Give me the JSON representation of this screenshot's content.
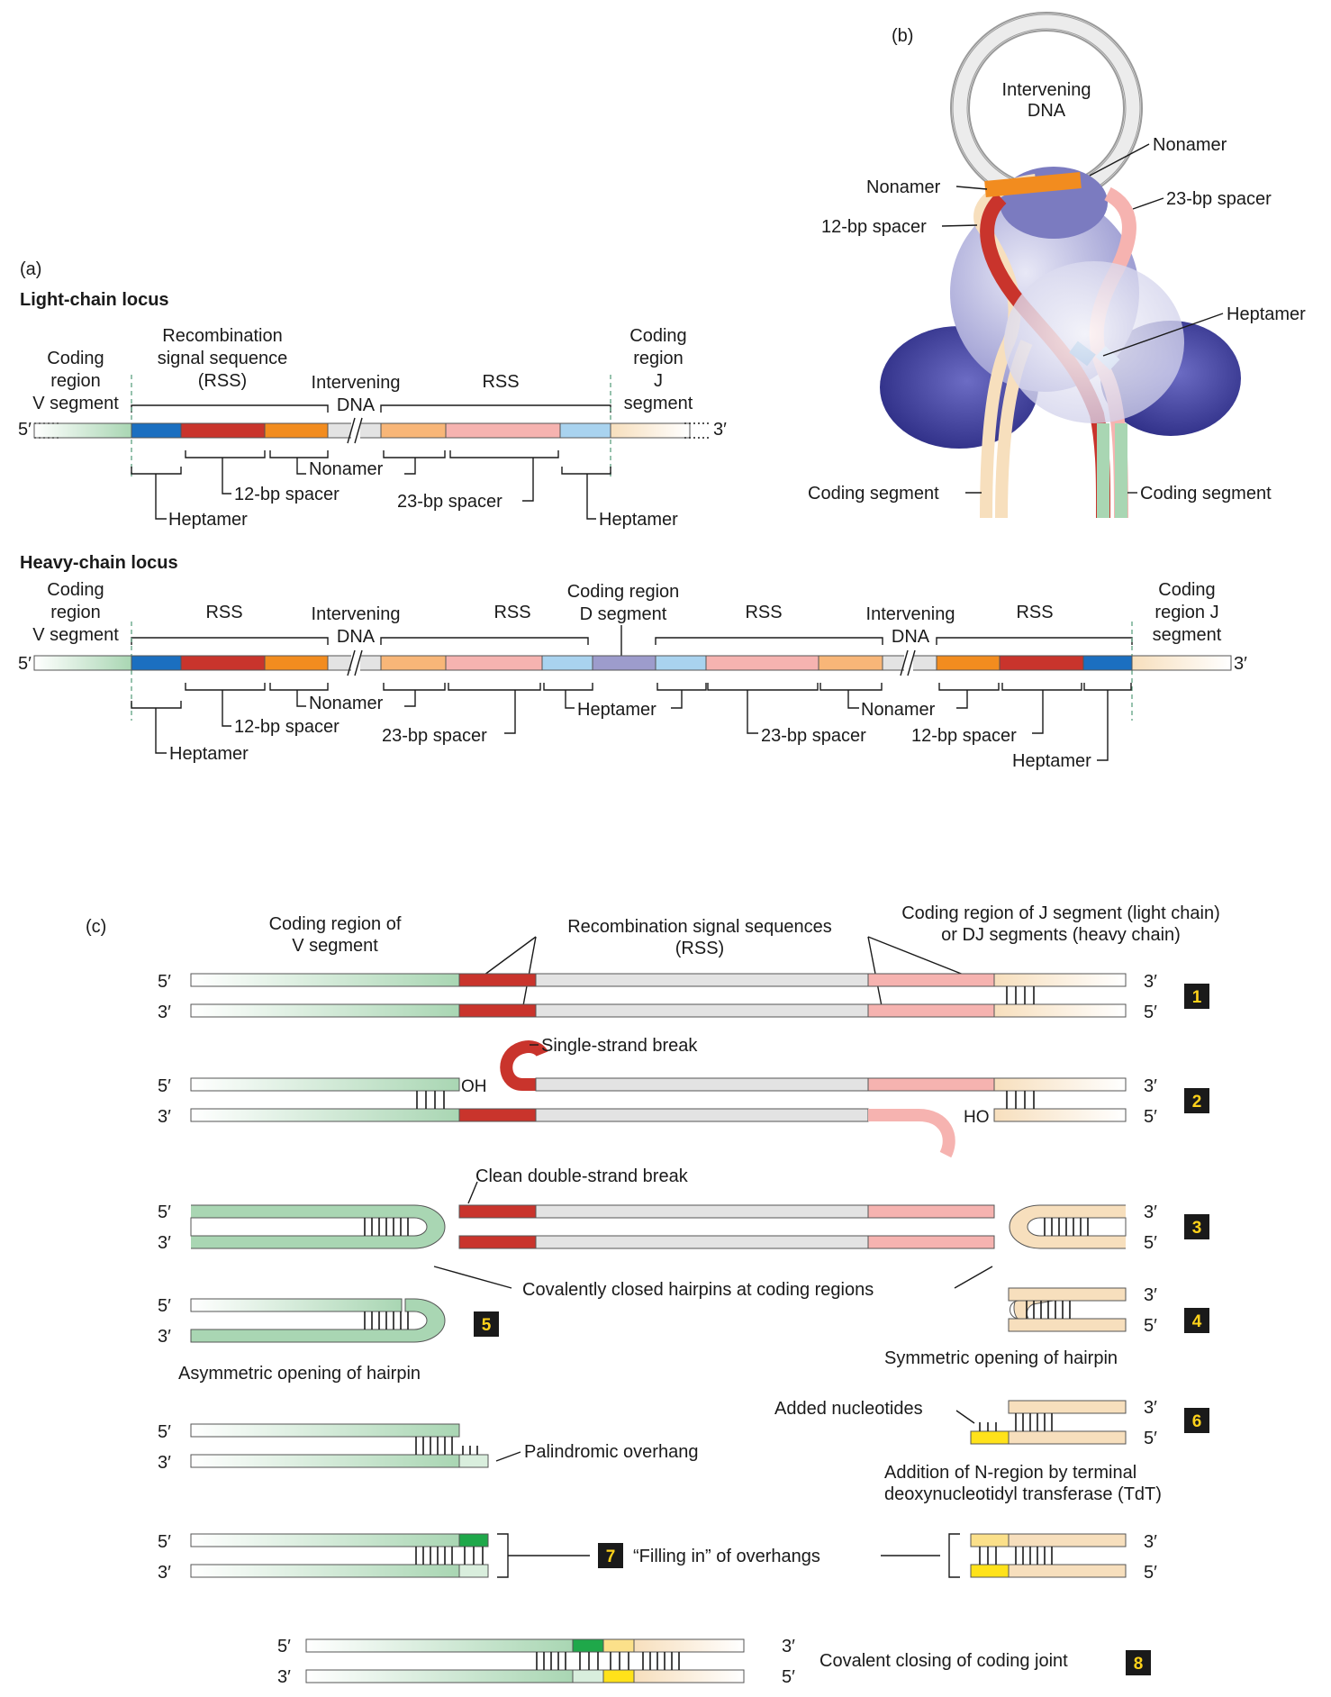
{
  "colors": {
    "coding_v": "#a9d6b3",
    "coding_j": "#f7dfbd",
    "heptamer_12": "#1b6fc0",
    "spacer_12": "#c9342c",
    "nonamer_12": "#f28c1f",
    "nonamer_23": "#f8b678",
    "spacer_23": "#f6b3b0",
    "heptamer_23": "#a9d3ef",
    "d_segment": "#9d9ccc",
    "intervening": "#e3e3e3",
    "n_region": "#ffe21a",
    "fill_green": "#1fa84a",
    "fill_yellow": "#fbe08a",
    "protein": "#5a5ab0"
  },
  "panel_a": {
    "label": "(a)",
    "light_title": "Light-chain locus",
    "heavy_title": "Heavy-chain locus",
    "light": {
      "coding_v": [
        "Coding",
        "region",
        "V segment"
      ],
      "rss_long": [
        "Recombination",
        "signal sequence",
        "(RSS)"
      ],
      "intervening": [
        "Intervening",
        "DNA"
      ],
      "rss": "RSS",
      "coding_j": [
        "Coding",
        "region",
        "J",
        "segment"
      ],
      "five": "5′",
      "three": "3′",
      "nonamer": "Nonamer",
      "spacer12": "12-bp spacer",
      "spacer23": "23-bp spacer",
      "heptamer_left": "Heptamer",
      "heptamer_right": "Heptamer"
    },
    "heavy": {
      "coding_v": [
        "Coding",
        "region",
        "V segment"
      ],
      "rss1": "RSS",
      "intervening1": [
        "Intervening",
        "DNA"
      ],
      "rss2": "RSS",
      "coding_d": [
        "Coding region",
        "D segment"
      ],
      "rss3": "RSS",
      "intervening2": [
        "Intervening",
        "DNA"
      ],
      "rss4": "RSS",
      "coding_j": [
        "Coding",
        "region J",
        "segment"
      ],
      "five": "5′",
      "three": "3′",
      "heptamer1": "Heptamer",
      "spacer12_1": "12-bp spacer",
      "nonamer1": "Nonamer",
      "spacer23_1": "23-bp spacer",
      "heptamer2": "Heptamer",
      "spacer23_2": "23-bp spacer",
      "nonamer2": "Nonamer",
      "spacer12_2": "12-bp spacer",
      "heptamer3": "Heptamer"
    }
  },
  "panel_b": {
    "label": "(b)",
    "intervening": [
      "Intervening",
      "DNA"
    ],
    "nonamer_left": "Nonamer",
    "nonamer_right": "Nonamer",
    "spacer12": "12-bp spacer",
    "spacer23": "23-bp spacer",
    "heptamer": "Heptamer",
    "coding_left": "Coding segment",
    "coding_right": "Coding segment"
  },
  "panel_c": {
    "label": "(c)",
    "coding_v": [
      "Coding region of",
      "V segment"
    ],
    "rss": [
      "Recombination signal sequences",
      "(RSS)"
    ],
    "coding_j": [
      "Coding region of J segment (light chain)",
      "or DJ segments (heavy chain)"
    ],
    "five": "5′",
    "three": "3′",
    "single_strand_break": "Single-strand break",
    "oh_left": "OH",
    "oh_right": "HO",
    "clean_break": "Clean double-strand break",
    "hairpins": "Covalently closed hairpins at coding regions",
    "asymmetric": "Asymmetric opening of hairpin",
    "symmetric": "Symmetric opening of hairpin",
    "added_nucleotides": "Added nucleotides",
    "palindromic": "Palindromic overhang",
    "n_region": [
      "Addition of N-region by terminal",
      "deoxynucleotidyl transferase (TdT)"
    ],
    "filling_in": "“Filling in” of overhangs",
    "covalent_closing": "Covalent closing of coding joint",
    "steps": [
      "1",
      "2",
      "3",
      "4",
      "5",
      "6",
      "7",
      "8"
    ]
  }
}
